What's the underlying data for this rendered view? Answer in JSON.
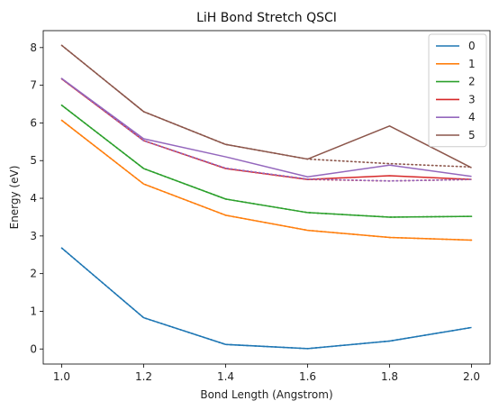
{
  "chart_data": {
    "type": "line",
    "title": "LiH Bond Stretch QSCI",
    "xlabel": "Bond Length (Angstrom)",
    "ylabel": "Energy (eV)",
    "x": [
      1.0,
      1.2,
      1.4,
      1.6,
      1.8,
      2.0
    ],
    "xlim": [
      0.955,
      2.045
    ],
    "ylim": [
      -0.4,
      8.45
    ],
    "xticks": [
      "1.0",
      "1.2",
      "1.4",
      "1.6",
      "1.8",
      "2.0"
    ],
    "yticks": [
      "0",
      "1",
      "2",
      "3",
      "4",
      "5",
      "6",
      "7",
      "8"
    ],
    "grid": false,
    "legend_position": "top-right",
    "series": [
      {
        "name": "0",
        "color": "#1f77b4",
        "values": [
          2.68,
          0.83,
          0.12,
          0.01,
          0.21,
          0.57
        ],
        "reference": [
          2.68,
          0.83,
          0.12,
          0.01,
          0.21,
          0.57
        ]
      },
      {
        "name": "1",
        "color": "#ff7f0e",
        "values": [
          6.07,
          4.38,
          3.55,
          3.15,
          2.96,
          2.89
        ],
        "reference": [
          6.07,
          4.38,
          3.55,
          3.15,
          2.96,
          2.89
        ]
      },
      {
        "name": "2",
        "color": "#2ca02c",
        "values": [
          6.47,
          4.79,
          3.98,
          3.62,
          3.5,
          3.52
        ],
        "reference": [
          6.47,
          4.79,
          3.98,
          3.62,
          3.5,
          3.52
        ]
      },
      {
        "name": "3",
        "color": "#d62728",
        "values": [
          7.17,
          5.53,
          4.79,
          4.5,
          4.6,
          4.5
        ],
        "reference": [
          7.17,
          5.53,
          4.79,
          4.5,
          4.46,
          4.5
        ]
      },
      {
        "name": "4",
        "color": "#9467bd",
        "values": [
          7.18,
          5.58,
          5.1,
          4.57,
          4.88,
          4.58
        ],
        "reference": [
          7.18,
          5.53,
          4.8,
          4.51,
          4.46,
          4.5
        ]
      },
      {
        "name": "5",
        "color": "#8c564b",
        "values": [
          8.06,
          6.3,
          5.43,
          5.04,
          5.92,
          4.81
        ],
        "reference": [
          8.06,
          6.3,
          5.43,
          5.04,
          4.92,
          4.83
        ]
      }
    ]
  }
}
